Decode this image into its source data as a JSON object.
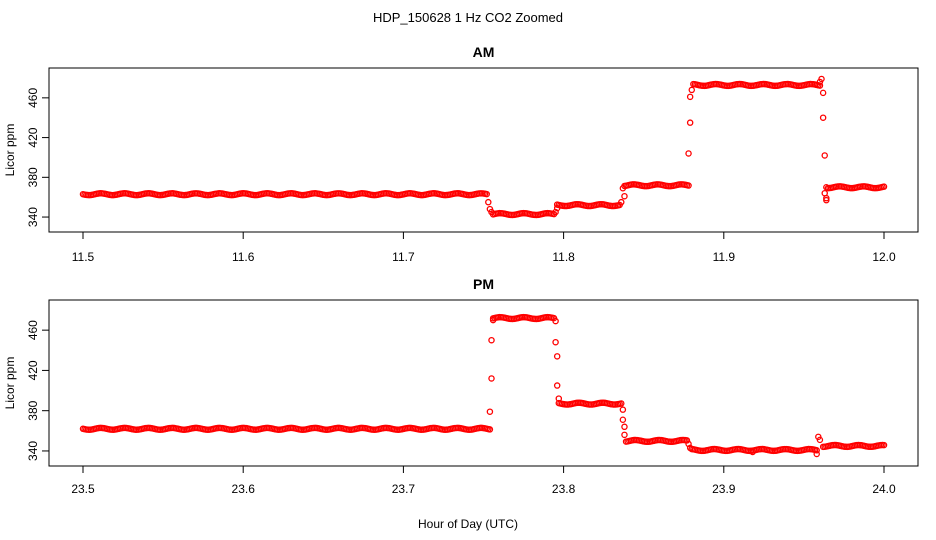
{
  "figure": {
    "title": "HDP_150628  1 Hz CO2 Zoomed",
    "xlabel": "Hour of Day (UTC)"
  },
  "colors": {
    "marker": "#ff0000",
    "axis": "#000000"
  },
  "chart_data": [
    {
      "type": "scatter",
      "title": "AM",
      "ylabel": "Licor ppm",
      "xlim": [
        11.5,
        12.0
      ],
      "ylim": [
        333,
        482
      ],
      "xticks": [
        "11.5",
        "11.6",
        "11.7",
        "11.8",
        "11.9",
        "12.0"
      ],
      "yticks": [
        "340",
        "380",
        "420",
        "460"
      ],
      "segments": [
        {
          "x0": 11.5,
          "x1": 11.752,
          "y": 363
        },
        {
          "x0": 11.756,
          "x1": 11.794,
          "y": 343
        },
        {
          "x0": 11.796,
          "x1": 11.835,
          "y": 352
        },
        {
          "x0": 11.838,
          "x1": 11.878,
          "y": 372
        },
        {
          "x0": 11.881,
          "x1": 11.96,
          "y": 473
        },
        {
          "x0": 11.965,
          "x1": 12.0,
          "y": 370
        }
      ],
      "points": [
        [
          11.753,
          355
        ],
        [
          11.754,
          348
        ],
        [
          11.755,
          345
        ],
        [
          11.795,
          345
        ],
        [
          11.796,
          349
        ],
        [
          11.836,
          355
        ],
        [
          11.837,
          369
        ],
        [
          11.838,
          361
        ],
        [
          11.878,
          404
        ],
        [
          11.879,
          435
        ],
        [
          11.879,
          461
        ],
        [
          11.88,
          468
        ],
        [
          11.96,
          476
        ],
        [
          11.961,
          479
        ],
        [
          11.962,
          440
        ],
        [
          11.962,
          465
        ],
        [
          11.963,
          402
        ],
        [
          11.963,
          364
        ],
        [
          11.964,
          370
        ],
        [
          11.964,
          357
        ],
        [
          11.964,
          359
        ]
      ]
    },
    {
      "type": "scatter",
      "title": "PM",
      "ylabel": "Licor ppm",
      "xlim": [
        23.5,
        24.0
      ],
      "ylim": [
        333,
        482
      ],
      "xticks": [
        "23.5",
        "23.6",
        "23.7",
        "23.8",
        "23.9",
        "24.0"
      ],
      "yticks": [
        "340",
        "380",
        "420",
        "460"
      ],
      "segments": [
        {
          "x0": 23.5,
          "x1": 23.754,
          "y": 362
        },
        {
          "x0": 23.756,
          "x1": 23.794,
          "y": 472
        },
        {
          "x0": 23.797,
          "x1": 23.836,
          "y": 387
        },
        {
          "x0": 23.839,
          "x1": 23.877,
          "y": 350
        },
        {
          "x0": 23.88,
          "x1": 23.958,
          "y": 341
        },
        {
          "x0": 23.962,
          "x1": 24.0,
          "y": 345
        }
      ],
      "points": [
        [
          23.754,
          379
        ],
        [
          23.755,
          412
        ],
        [
          23.755,
          450
        ],
        [
          23.756,
          470
        ],
        [
          23.795,
          469
        ],
        [
          23.795,
          448
        ],
        [
          23.796,
          434
        ],
        [
          23.796,
          405
        ],
        [
          23.797,
          392
        ],
        [
          23.837,
          381
        ],
        [
          23.837,
          371
        ],
        [
          23.838,
          364
        ],
        [
          23.838,
          356
        ],
        [
          23.878,
          347
        ],
        [
          23.879,
          343
        ],
        [
          23.918,
          339
        ],
        [
          23.958,
          337
        ],
        [
          23.959,
          354
        ],
        [
          23.96,
          351
        ]
      ]
    }
  ]
}
